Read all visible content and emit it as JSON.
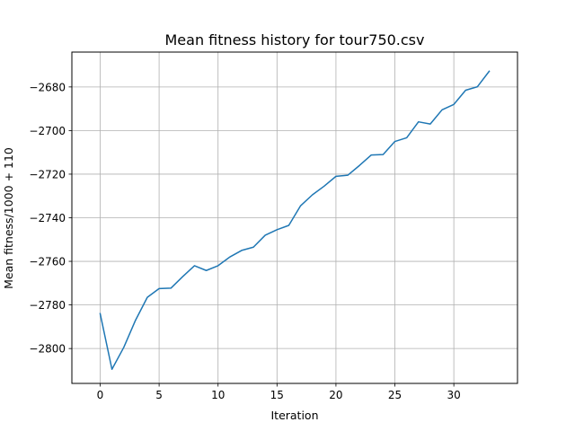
{
  "chart_data": {
    "type": "line",
    "title": "Mean fitness history for tour750.csv",
    "xlabel": "Iteration",
    "ylabel": "Mean fitness/1000 + 110",
    "xlim": [
      -2.4,
      35.4
    ],
    "ylim": [
      -2816,
      -2664
    ],
    "xticks": [
      0,
      5,
      10,
      15,
      20,
      25,
      30
    ],
    "yticks": [
      -2800,
      -2780,
      -2760,
      -2740,
      -2720,
      -2700,
      -2680
    ],
    "grid": true,
    "line_color": "#1f77b4",
    "series": [
      {
        "x": [
          0,
          1,
          2,
          3,
          4,
          5,
          6,
          7,
          8,
          9,
          10,
          11,
          12,
          13,
          14,
          15,
          16,
          17,
          18,
          19,
          20,
          21,
          22,
          23,
          24,
          25,
          26,
          27,
          28,
          29,
          30,
          31,
          32,
          33
        ],
        "values": [
          -2784,
          -2809.5,
          -2799.5,
          -2787,
          -2776.5,
          -2772.5,
          -2772.3,
          -2767,
          -2762,
          -2764.2,
          -2762,
          -2758,
          -2755,
          -2753.5,
          -2748,
          -2745.5,
          -2743.5,
          -2734.5,
          -2729.5,
          -2725.5,
          -2721,
          -2720.5,
          -2716,
          -2711.2,
          -2711,
          -2705,
          -2703.3,
          -2696,
          -2697,
          -2690.5,
          -2688,
          -2681.5,
          -2679.9,
          -2672.8
        ]
      }
    ]
  }
}
